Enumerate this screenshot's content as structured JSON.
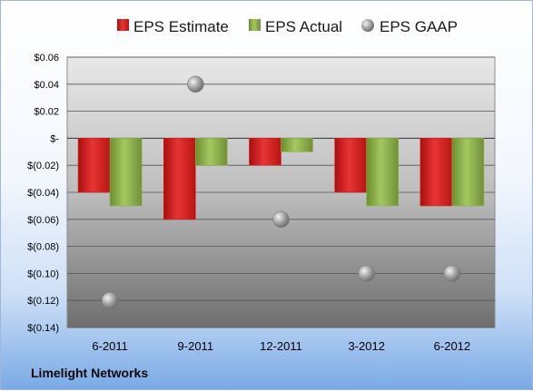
{
  "company": "Limelight Networks",
  "colors": {
    "estimate": "#d42020",
    "actual": "#8db24a",
    "gaap": "#a6a6a6"
  },
  "chart_data": {
    "type": "bar",
    "categories": [
      "6-2011",
      "9-2011",
      "12-2011",
      "3-2012",
      "6-2012"
    ],
    "series": [
      {
        "name": "EPS Estimate",
        "values": [
          -0.04,
          -0.06,
          -0.02,
          -0.04,
          -0.05
        ],
        "mark": "bar"
      },
      {
        "name": "EPS Actual",
        "values": [
          -0.05,
          -0.02,
          -0.01,
          -0.05,
          -0.05
        ],
        "mark": "bar"
      },
      {
        "name": "EPS GAAP",
        "values": [
          -0.12,
          0.04,
          -0.06,
          -0.1,
          -0.1
        ],
        "mark": "point"
      }
    ],
    "ylim": [
      -0.14,
      0.06
    ],
    "yticks": [
      0.06,
      0.04,
      0.02,
      0,
      -0.02,
      -0.04,
      -0.06,
      -0.08,
      -0.1,
      -0.12,
      -0.14
    ],
    "ytick_labels": [
      "$0.06",
      "$0.04",
      "$0.02",
      "$-",
      "$(0.02)",
      "$(0.04)",
      "$(0.06)",
      "$(0.08)",
      "$(0.10)",
      "$(0.12)",
      "$(0.14)"
    ],
    "grid": true,
    "legend": "top"
  }
}
